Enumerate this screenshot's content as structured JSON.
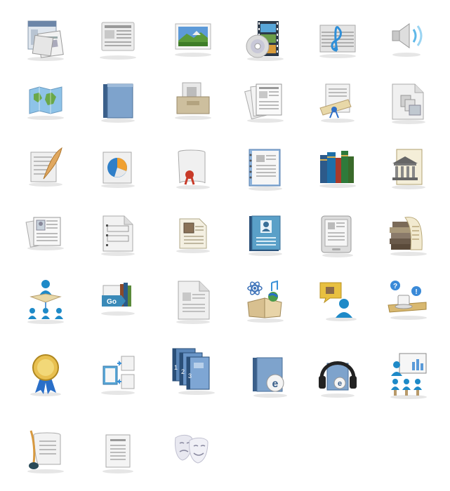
{
  "icons": [
    {
      "name": "web-pages-icon"
    },
    {
      "name": "newspaper-icon"
    },
    {
      "name": "landscape-picture-icon"
    },
    {
      "name": "film-disc-icon"
    },
    {
      "name": "sheet-music-icon"
    },
    {
      "name": "speaker-audio-icon"
    },
    {
      "name": "world-map-icon"
    },
    {
      "name": "blue-book-icon"
    },
    {
      "name": "archive-tray-icon"
    },
    {
      "name": "stacked-articles-icon"
    },
    {
      "name": "diploma-scroll-icon"
    },
    {
      "name": "document-collection-icon"
    },
    {
      "name": "quill-letter-icon"
    },
    {
      "name": "pie-chart-report-icon"
    },
    {
      "name": "sealed-certificate-icon"
    },
    {
      "name": "notebook-page-icon"
    },
    {
      "name": "books-on-shelf-icon"
    },
    {
      "name": "library-building-icon"
    },
    {
      "name": "profile-articles-icon"
    },
    {
      "name": "form-document-icon"
    },
    {
      "name": "manuscript-page-icon"
    },
    {
      "name": "address-book-icon"
    },
    {
      "name": "ereader-device-icon"
    },
    {
      "name": "book-scroll-stack-icon"
    },
    {
      "name": "teacher-students-icon"
    },
    {
      "name": "books-go-icon",
      "label": "Go"
    },
    {
      "name": "blank-document-icon"
    },
    {
      "name": "science-open-book-icon"
    },
    {
      "name": "user-help-chat-icon"
    },
    {
      "name": "coffee-question-icon",
      "q": "?",
      "e": "!"
    },
    {
      "name": "award-ribbon-icon"
    },
    {
      "name": "document-exchange-icon"
    },
    {
      "name": "numbered-books-icon",
      "n1": "1",
      "n2": "2",
      "n3": "3"
    },
    {
      "name": "ebook-icon",
      "letter": "e"
    },
    {
      "name": "audiobook-headphones-icon",
      "letter": "e"
    },
    {
      "name": "classroom-presentation-icon"
    },
    {
      "name": "quill-ink-document-icon"
    },
    {
      "name": "text-document-icon"
    },
    {
      "name": "theatre-masks-icon"
    }
  ]
}
